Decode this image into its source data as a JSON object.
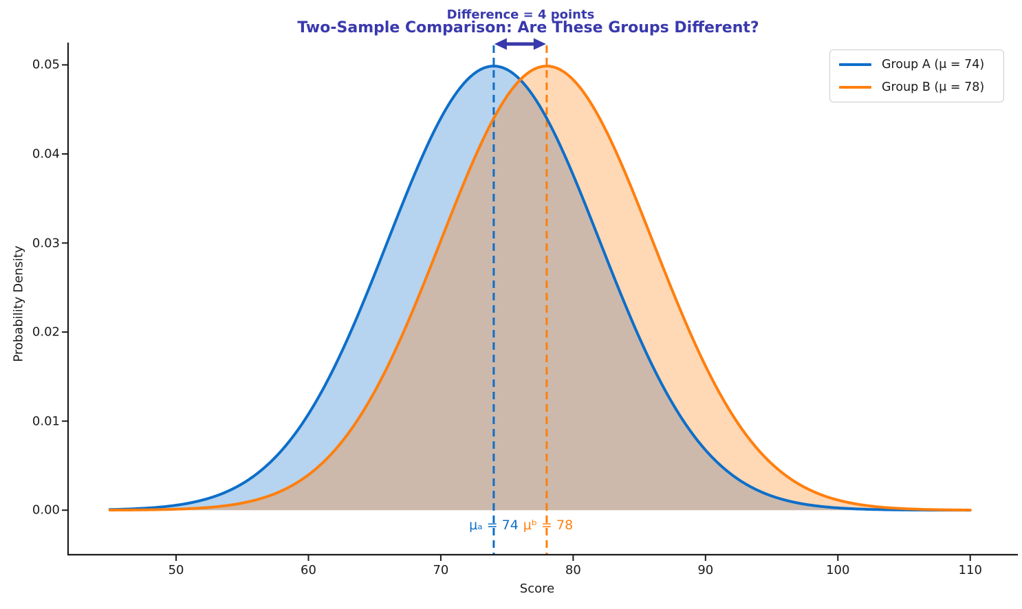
{
  "chart_data": {
    "type": "line",
    "title": "Two-Sample Comparison: Are These Groups Different?",
    "xlabel": "Score",
    "ylabel": "Probability Density",
    "x_range": [
      45,
      110
    ],
    "xlim": [
      41.84,
      113.6
    ],
    "ylim": [
      -0.005,
      0.0525
    ],
    "xticks": [
      50,
      60,
      70,
      80,
      90,
      100,
      110
    ],
    "yticks": [
      "0.00",
      "0.01",
      "0.02",
      "0.03",
      "0.04",
      "0.05"
    ],
    "ytick_values": [
      0,
      0.01,
      0.02,
      0.03,
      0.04,
      0.05
    ],
    "grid": false,
    "legend_position": "upper right",
    "annotation": {
      "text": "Difference = 4 points",
      "arrow_from_x": 74,
      "arrow_to_x": 78,
      "difference": 4
    },
    "series": [
      {
        "name": "Group A",
        "legend_label": "Group A (μ = 74)",
        "distribution": "normal",
        "mean": 74,
        "sd": 8,
        "color": "#0d6ec9",
        "fill_opacity": 0.3,
        "mean_line_x": 74,
        "mean_line_style": "dashed",
        "mean_annotation": "μₐ = 74"
      },
      {
        "name": "Group B",
        "legend_label": "Group B (μ = 78)",
        "distribution": "normal",
        "mean": 78,
        "sd": 8,
        "color": "#ff7f0e",
        "fill_opacity": 0.3,
        "mean_line_x": 78,
        "mean_line_style": "dashed",
        "mean_annotation": "μᵇ = 78"
      }
    ],
    "peak_density": 0.0499,
    "sample_points": {
      "x": [
        45,
        50,
        55,
        60,
        65,
        70,
        74,
        75,
        78,
        80,
        85,
        90,
        95,
        100,
        105,
        110
      ],
      "group_a_density": [
        7e-05,
        0.000554,
        0.002965,
        0.01078,
        0.026485,
        0.044008,
        0.049867,
        0.049479,
        0.043938,
        0.037643,
        0.019377,
        0.006749,
        0.001589,
        0.000254,
        2.73e-05,
        2e-06
      ],
      "group_b_density": [
        1.1e-05,
        7e-05,
        0.000554,
        0.002965,
        0.01078,
        0.030157,
        0.043938,
        0.046109,
        0.049867,
        0.048328,
        0.034105,
        0.016329,
        0.005293,
        0.001161,
        0.000172,
        1.73e-05
      ]
    }
  },
  "colors": {
    "title": "#3939ac",
    "annotation": "#3939ac",
    "arrow": "#3939ac",
    "axis": "#1a1a1a",
    "group_a": "#0d6ec9",
    "group_b": "#ff7f0e",
    "legend_border": "#cccccc",
    "background": "#ffffff"
  }
}
